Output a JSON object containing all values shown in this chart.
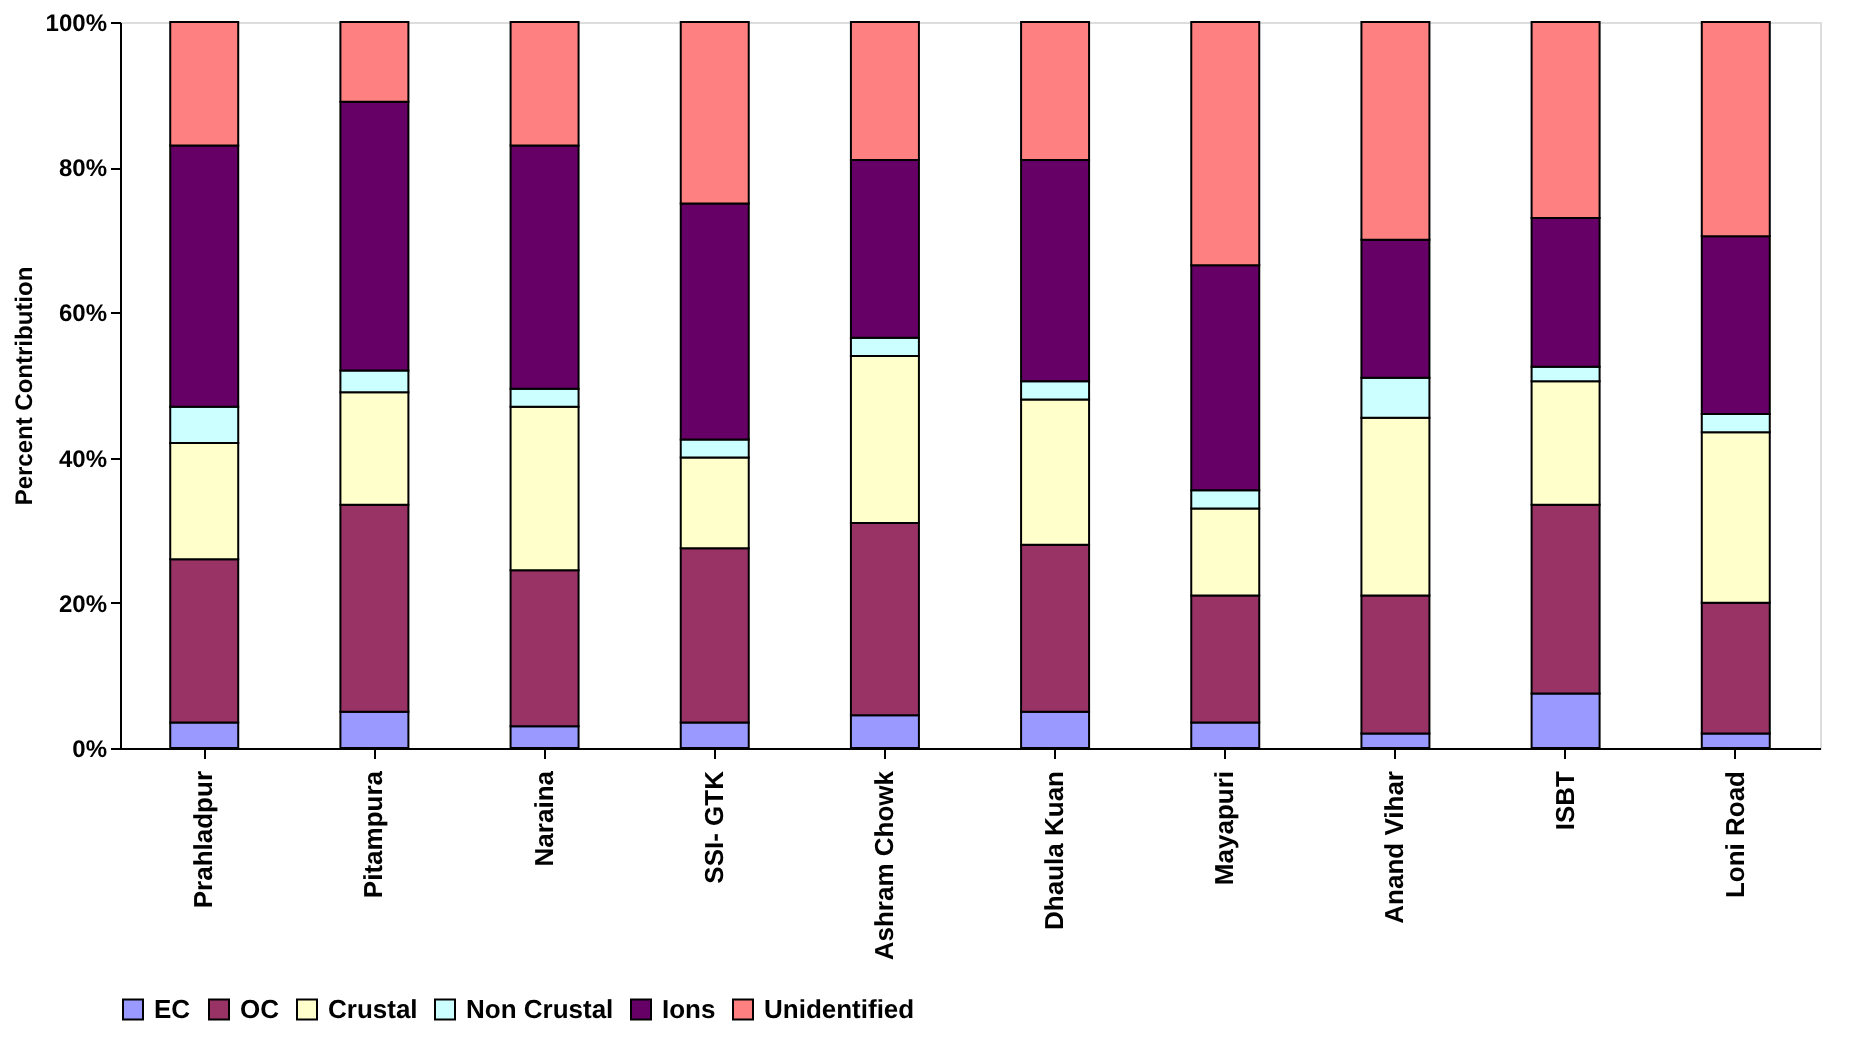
{
  "chart_data": {
    "type": "bar",
    "stacked": true,
    "ylabel": "Percent Contribution",
    "categories": [
      "Prahladpur",
      "Pitampura",
      "Naraina",
      "SSI- GTK",
      "Ashram Chowk",
      "Dhaula Kuan",
      "Mayapuri",
      "Anand Vihar",
      "ISBT",
      "Loni Road"
    ],
    "series": [
      {
        "name": "EC",
        "color": "#9999ff",
        "values": [
          3.5,
          5,
          3,
          3.5,
          4.5,
          5,
          3.5,
          2,
          7.5,
          2
        ]
      },
      {
        "name": "OC",
        "color": "#993366",
        "values": [
          22.5,
          28.5,
          21.5,
          24,
          26.5,
          23,
          17.5,
          19,
          26,
          18
        ]
      },
      {
        "name": "Crustal",
        "color": "#ffffcc",
        "values": [
          16,
          15.5,
          22.5,
          12.5,
          23,
          20,
          12,
          24.5,
          17,
          23.5
        ]
      },
      {
        "name": "Non Crustal",
        "color": "#ccffff",
        "values": [
          5,
          3,
          2.5,
          2.5,
          2.5,
          2.5,
          2.5,
          5.5,
          2,
          2.5
        ]
      },
      {
        "name": "Ions",
        "color": "#660066",
        "values": [
          36,
          37,
          33.5,
          32.5,
          24.5,
          30.5,
          31,
          19,
          20.5,
          24.5
        ]
      },
      {
        "name": "Unidentified",
        "color": "#ff8080",
        "values": [
          17,
          11,
          17,
          25,
          19,
          19,
          33.5,
          30,
          27,
          29.5
        ]
      }
    ],
    "ylim": [
      0,
      100
    ],
    "yticks": [
      {
        "value": 0,
        "label": "0%"
      },
      {
        "value": 20,
        "label": "20%"
      },
      {
        "value": 40,
        "label": "40%"
      },
      {
        "value": 60,
        "label": "60%"
      },
      {
        "value": 80,
        "label": "80%"
      },
      {
        "value": 100,
        "label": "100%"
      }
    ],
    "grid": false,
    "legend": "bottom"
  }
}
